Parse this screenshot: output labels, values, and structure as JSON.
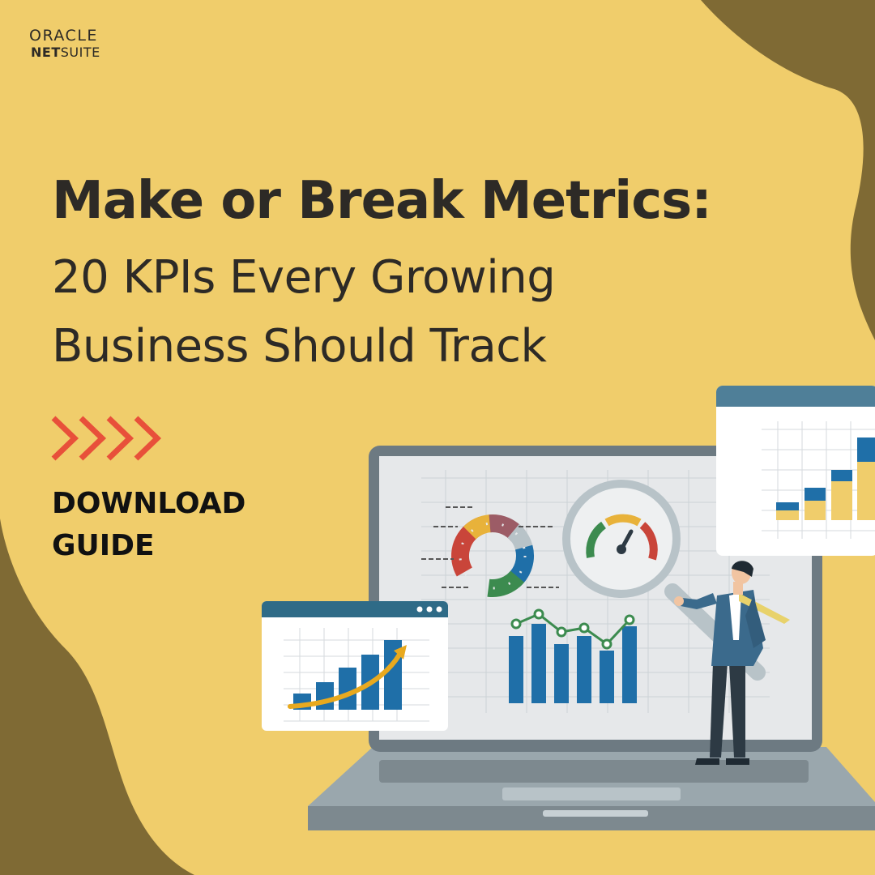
{
  "logo": {
    "line1": "ORACLE",
    "line2_bold": "NET",
    "line2_rest": "SUITE"
  },
  "headline": {
    "title": "Make or Break Metrics:",
    "subtitle_line1": "20 KPIs Every Growing",
    "subtitle_line2": "Business Should Track"
  },
  "cta": {
    "line1": "DOWNLOAD",
    "line2": "GUIDE"
  },
  "colors": {
    "background": "#f0cd6b",
    "blob": "#7f6a34",
    "arrows": "#e8503a",
    "chart_blue": "#1f6fa8",
    "chart_teal": "#2b7d8c",
    "chart_gold": "#e8b23a"
  },
  "icons": [
    "chevron-arrows-icon",
    "laptop-illustration",
    "magnifier-icon",
    "gauge-icon",
    "donut-chart-icon",
    "person-illustration"
  ]
}
